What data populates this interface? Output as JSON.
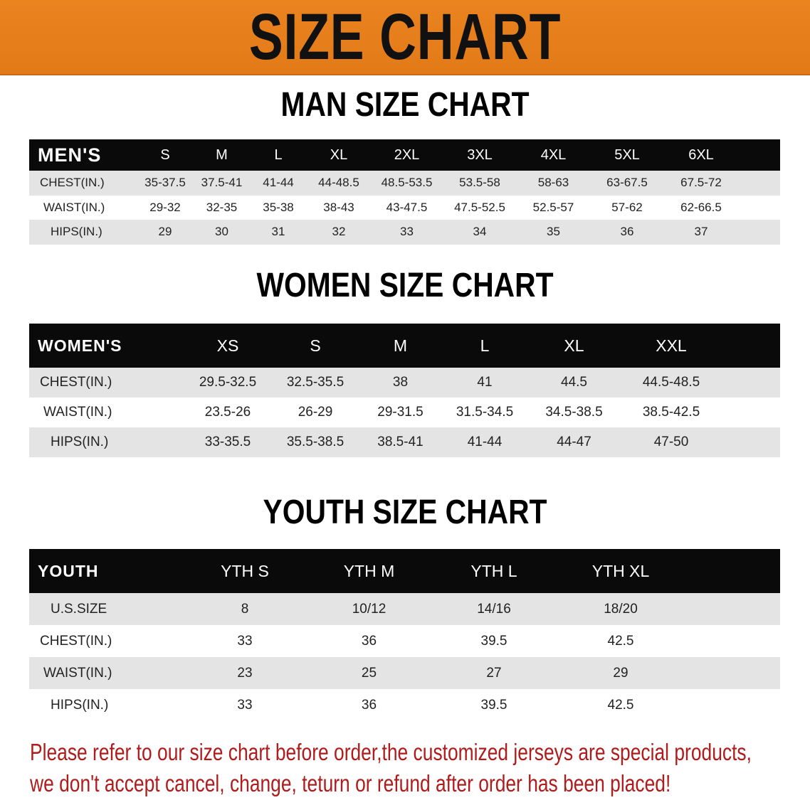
{
  "banner": {
    "title": "SIZE CHART",
    "color": "#e8801e"
  },
  "men": {
    "title": "MAN SIZE CHART",
    "header": [
      "MEN'S",
      "S",
      "M",
      "L",
      "XL",
      "2XL",
      "3XL",
      "4XL",
      "5XL",
      "6XL"
    ],
    "rows": [
      [
        "CHEST(IN.)",
        "35-37.5",
        "37.5-41",
        "41-44",
        "44-48.5",
        "48.5-53.5",
        "53.5-58",
        "58-63",
        "63-67.5",
        "67.5-72"
      ],
      [
        "WAIST(IN.)",
        "29-32",
        "32-35",
        "35-38",
        "38-43",
        "43-47.5",
        "47.5-52.5",
        "52.5-57",
        "57-62",
        "62-66.5"
      ],
      [
        "HIPS(IN.)",
        "29",
        "30",
        "31",
        "32",
        "33",
        "34",
        "35",
        "36",
        "37"
      ]
    ]
  },
  "women": {
    "title": "WOMEN SIZE CHART",
    "header": [
      "WOMEN'S",
      "XS",
      "S",
      "M",
      "L",
      "XL",
      "XXL"
    ],
    "rows": [
      [
        "CHEST(IN.)",
        "29.5-32.5",
        "32.5-35.5",
        "38",
        "41",
        "44.5",
        "44.5-48.5"
      ],
      [
        "WAIST(IN.)",
        "23.5-26",
        "26-29",
        "29-31.5",
        "31.5-34.5",
        "34.5-38.5",
        "38.5-42.5"
      ],
      [
        "HIPS(IN.)",
        "33-35.5",
        "35.5-38.5",
        "38.5-41",
        "41-44",
        "44-47",
        "47-50"
      ]
    ]
  },
  "youth": {
    "title": "YOUTH SIZE CHART",
    "header": [
      "YOUTH",
      "YTH S",
      "YTH M",
      "YTH L",
      "YTH XL"
    ],
    "rows": [
      [
        "U.S.SIZE",
        "8",
        "10/12",
        "14/16",
        "18/20"
      ],
      [
        "CHEST(IN.)",
        "33",
        "36",
        "39.5",
        "42.5"
      ],
      [
        "WAIST(IN.)",
        "23",
        "25",
        "27",
        "29"
      ],
      [
        "HIPS(IN.)",
        "33",
        "36",
        "39.5",
        "42.5"
      ]
    ]
  },
  "footer": {
    "line1": "Please refer to our size chart before order,the customized jerseys are special products,",
    "line2": "we don't accept cancel, change, teturn or refund after order has been placed!",
    "color": "#b01c1c"
  }
}
